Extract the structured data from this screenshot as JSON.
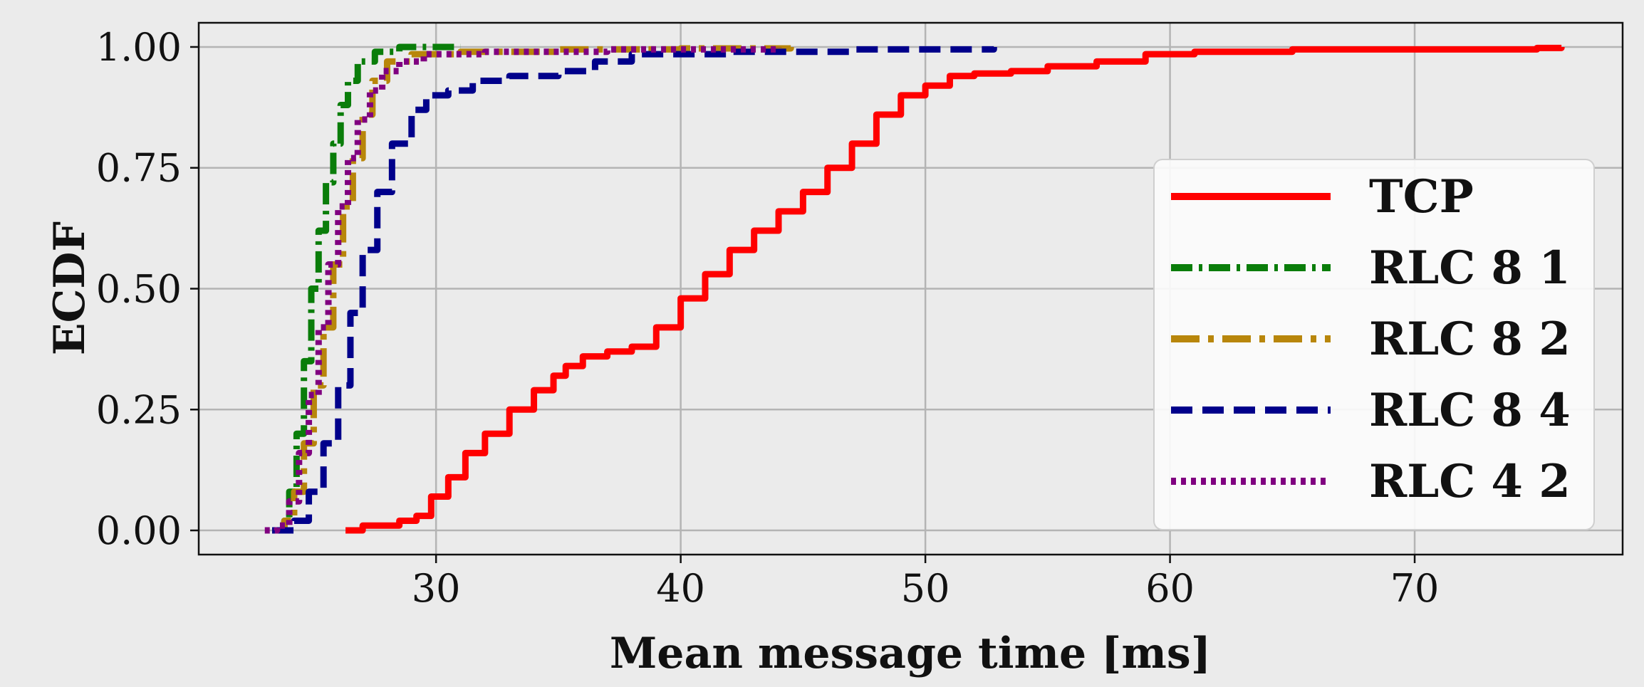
{
  "chart_data": {
    "type": "line",
    "title": "",
    "xlabel": "Mean message time [ms]",
    "ylabel": "ECDF",
    "xlim": [
      20.3,
      78.5
    ],
    "ylim": [
      -0.05,
      1.05
    ],
    "xticks": [
      30,
      40,
      50,
      60,
      70
    ],
    "xtick_labels": [
      "30",
      "40",
      "50",
      "60",
      "70"
    ],
    "yticks": [
      0,
      0.25,
      0.5,
      0.75,
      1.0
    ],
    "ytick_labels": [
      "0.00",
      "0.25",
      "0.50",
      "0.75",
      "1.00"
    ],
    "grid": true,
    "legend_position": "right",
    "series": [
      {
        "name": "TCP",
        "color": "#ff0000",
        "dash": "solid",
        "points": [
          [
            26.3,
            0.0
          ],
          [
            27.0,
            0.01
          ],
          [
            28.5,
            0.02
          ],
          [
            29.2,
            0.03
          ],
          [
            29.8,
            0.07
          ],
          [
            30.5,
            0.11
          ],
          [
            31.2,
            0.16
          ],
          [
            32.0,
            0.2
          ],
          [
            33.0,
            0.25
          ],
          [
            34.0,
            0.29
          ],
          [
            34.8,
            0.32
          ],
          [
            35.3,
            0.34
          ],
          [
            36.0,
            0.36
          ],
          [
            37.0,
            0.37
          ],
          [
            38.0,
            0.38
          ],
          [
            39.0,
            0.42
          ],
          [
            40.0,
            0.48
          ],
          [
            41.0,
            0.53
          ],
          [
            42.0,
            0.58
          ],
          [
            43.0,
            0.62
          ],
          [
            44.0,
            0.66
          ],
          [
            45.0,
            0.7
          ],
          [
            46.0,
            0.75
          ],
          [
            47.0,
            0.8
          ],
          [
            48.0,
            0.86
          ],
          [
            49.0,
            0.9
          ],
          [
            50.0,
            0.92
          ],
          [
            51.0,
            0.94
          ],
          [
            52.0,
            0.945
          ],
          [
            53.5,
            0.95
          ],
          [
            55.0,
            0.96
          ],
          [
            57.0,
            0.97
          ],
          [
            59.0,
            0.985
          ],
          [
            61.0,
            0.99
          ],
          [
            65.0,
            0.995
          ],
          [
            75.0,
            0.998
          ],
          [
            76.0,
            1.0
          ]
        ]
      },
      {
        "name": "RLC 8 1",
        "color": "#0a7d0a",
        "dash": "dashdot",
        "points": [
          [
            23.4,
            0.0
          ],
          [
            23.8,
            0.02
          ],
          [
            24.0,
            0.08
          ],
          [
            24.3,
            0.2
          ],
          [
            24.6,
            0.35
          ],
          [
            24.9,
            0.5
          ],
          [
            25.2,
            0.62
          ],
          [
            25.5,
            0.72
          ],
          [
            25.8,
            0.8
          ],
          [
            26.1,
            0.88
          ],
          [
            26.4,
            0.93
          ],
          [
            26.8,
            0.97
          ],
          [
            27.5,
            0.99
          ],
          [
            28.5,
            1.0
          ],
          [
            31.0,
            1.0
          ]
        ]
      },
      {
        "name": "RLC 8 2",
        "color": "#b8860b",
        "dash": "longdashdot",
        "points": [
          [
            23.3,
            0.0
          ],
          [
            23.8,
            0.02
          ],
          [
            24.2,
            0.08
          ],
          [
            24.6,
            0.18
          ],
          [
            25.0,
            0.3
          ],
          [
            25.4,
            0.42
          ],
          [
            25.8,
            0.55
          ],
          [
            26.2,
            0.67
          ],
          [
            26.6,
            0.77
          ],
          [
            27.0,
            0.86
          ],
          [
            27.4,
            0.93
          ],
          [
            28.0,
            0.97
          ],
          [
            29.0,
            0.985
          ],
          [
            31.0,
            0.99
          ],
          [
            35.0,
            0.995
          ],
          [
            40.0,
            0.997
          ],
          [
            44.5,
            1.0
          ]
        ]
      },
      {
        "name": "RLC 8 4",
        "color": "#00008b",
        "dash": "dashed",
        "points": [
          [
            23.3,
            0.0
          ],
          [
            23.7,
            0.0
          ],
          [
            24.2,
            0.02
          ],
          [
            24.8,
            0.08
          ],
          [
            25.4,
            0.18
          ],
          [
            26.0,
            0.3
          ],
          [
            26.5,
            0.45
          ],
          [
            27.0,
            0.58
          ],
          [
            27.6,
            0.7
          ],
          [
            28.2,
            0.8
          ],
          [
            29.0,
            0.87
          ],
          [
            29.6,
            0.9
          ],
          [
            30.5,
            0.91
          ],
          [
            31.5,
            0.93
          ],
          [
            33.0,
            0.94
          ],
          [
            35.0,
            0.95
          ],
          [
            36.5,
            0.97
          ],
          [
            38.0,
            0.985
          ],
          [
            42.0,
            0.99
          ],
          [
            47.0,
            0.995
          ],
          [
            52.8,
            1.0
          ]
        ]
      },
      {
        "name": "RLC 4 2",
        "color": "#800080",
        "dash": "dotted",
        "points": [
          [
            23.0,
            0.0
          ],
          [
            23.5,
            0.01
          ],
          [
            24.0,
            0.06
          ],
          [
            24.4,
            0.16
          ],
          [
            24.8,
            0.28
          ],
          [
            25.2,
            0.42
          ],
          [
            25.6,
            0.55
          ],
          [
            26.0,
            0.67
          ],
          [
            26.4,
            0.77
          ],
          [
            26.8,
            0.85
          ],
          [
            27.3,
            0.91
          ],
          [
            27.8,
            0.95
          ],
          [
            28.5,
            0.97
          ],
          [
            29.5,
            0.985
          ],
          [
            32.0,
            0.99
          ],
          [
            37.0,
            0.995
          ],
          [
            44.0,
            1.0
          ]
        ]
      }
    ]
  }
}
